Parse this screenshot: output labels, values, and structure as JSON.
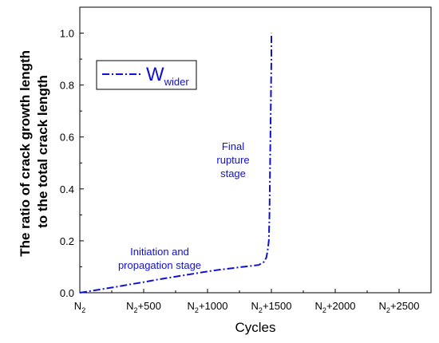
{
  "chart_data": {
    "type": "line",
    "xlabel": "Cycles",
    "ylabel_line1": "The ratio of crack growth length",
    "ylabel_line2": "to the total crack length",
    "x_ticks": [
      {
        "value": 0,
        "base": "N",
        "sub": "2",
        "suffix": ""
      },
      {
        "value": 500,
        "base": "N",
        "sub": "2",
        "suffix": "+500"
      },
      {
        "value": 1000,
        "base": "N",
        "sub": "2",
        "suffix": "+1000"
      },
      {
        "value": 1500,
        "base": "N",
        "sub": "2",
        "suffix": "+1500"
      },
      {
        "value": 2000,
        "base": "N",
        "sub": "2",
        "suffix": "+2000"
      },
      {
        "value": 2500,
        "base": "N",
        "sub": "2",
        "suffix": "+2500"
      }
    ],
    "y_ticks": [
      "0.0",
      "0.2",
      "0.4",
      "0.6",
      "0.8",
      "1.0"
    ],
    "xlim": [
      0,
      2750
    ],
    "ylim": [
      0,
      1.1
    ],
    "grid": false,
    "legend_position": "top-left",
    "series": [
      {
        "name_main": "W",
        "name_sub": "wider",
        "color": "#1010d0",
        "line_style": "dash-dot",
        "x": [
          0,
          100,
          200,
          300,
          400,
          500,
          600,
          700,
          800,
          900,
          1000,
          1100,
          1200,
          1300,
          1400,
          1440,
          1460,
          1470,
          1480,
          1485,
          1490,
          1495,
          1500,
          1500
        ],
        "y": [
          0.0,
          0.008,
          0.016,
          0.024,
          0.033,
          0.041,
          0.05,
          0.058,
          0.066,
          0.074,
          0.082,
          0.089,
          0.095,
          0.101,
          0.107,
          0.118,
          0.135,
          0.16,
          0.2,
          0.3,
          0.5,
          0.7,
          0.9,
          1.0
        ]
      }
    ],
    "annotations": [
      {
        "lines": [
          "Final",
          "rupture",
          "stage"
        ],
        "x": 1200,
        "y": 0.55,
        "color": "#1010d0"
      },
      {
        "lines": [
          "Initiation and",
          "propagation stage"
        ],
        "x": 625,
        "y": 0.145,
        "color": "#1010d0"
      }
    ]
  }
}
